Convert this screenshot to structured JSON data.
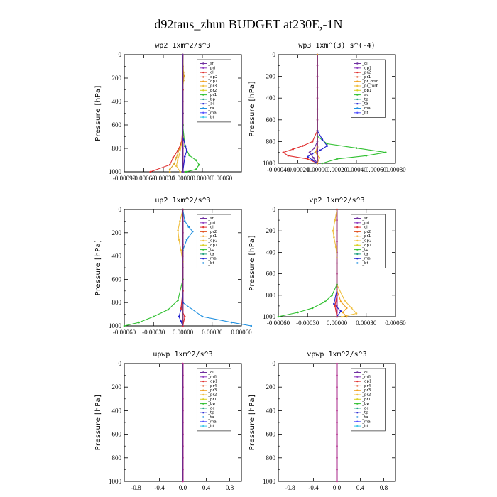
{
  "figure": {
    "title": "d92taus_zhun  BUDGET at230E,-1N"
  },
  "chart_data": [
    {
      "type": "line",
      "title": "wp2  1xm^2/s^3",
      "ylabel": "Pressure [hPa]",
      "ylim": [
        1000,
        0
      ],
      "yticks": [
        "0",
        "200",
        "400",
        "600",
        "800",
        "1000"
      ],
      "xlim": [
        -0.0009,
        0.0009
      ],
      "xticks": [
        "-0.00090",
        "-0.00060",
        "-0.00030",
        "0.00000",
        "0.00030",
        "0.00060"
      ],
      "legend": [
        "_sf",
        "_pd",
        "_cl",
        "_dp2",
        "_dp1",
        "_pr3",
        "_pr2",
        "_pr1",
        "_bp",
        "_ac",
        "_ta",
        "_ma",
        "_bt"
      ],
      "series": [
        {
          "color": "#c0268a",
          "x": [
            0,
            0,
            0,
            0,
            0,
            0,
            0,
            0,
            0,
            0,
            0
          ],
          "y": [
            0,
            100,
            200,
            300,
            400,
            500,
            600,
            700,
            800,
            900,
            1000
          ]
        },
        {
          "color": "#d8a020",
          "x": [
            0,
            1e-05,
            2e-05,
            1e-05,
            0,
            0,
            0,
            -5e-05,
            -0.0001,
            -0.00013,
            -0.0002,
            -0.0002
          ],
          "y": [
            0,
            150,
            180,
            220,
            300,
            500,
            700,
            800,
            880,
            930,
            980,
            1000
          ]
        },
        {
          "color": "#e03030",
          "x": [
            0,
            0,
            0,
            -2e-05,
            -8e-05,
            -0.00015,
            -0.0002,
            -0.0005
          ],
          "y": [
            0,
            300,
            600,
            750,
            820,
            880,
            940,
            1000
          ]
        },
        {
          "color": "#30c030",
          "x": [
            0,
            0,
            3e-05,
            0.0001,
            0.0002,
            0.00025,
            0.0002,
            5e-05
          ],
          "y": [
            0,
            600,
            780,
            860,
            900,
            940,
            980,
            1000
          ]
        },
        {
          "color": "#2020d0",
          "x": [
            0,
            0,
            4e-05,
            6e-05,
            3e-05,
            0
          ],
          "y": [
            0,
            700,
            780,
            820,
            870,
            1000
          ]
        },
        {
          "color": "#f0c040",
          "x": [
            0,
            0,
            -5e-05,
            -8e-05,
            -0.0001,
            -4e-05
          ],
          "y": [
            0,
            700,
            850,
            900,
            950,
            1000
          ]
        },
        {
          "color": "#7030a0",
          "x": [
            0,
            0,
            0
          ],
          "y": [
            0,
            500,
            1000
          ]
        }
      ]
    },
    {
      "type": "line",
      "title": "wp3  1xm^(3) s^(-4)",
      "ylabel": "Pressure [hPa]",
      "ylim": [
        1000,
        0
      ],
      "yticks": [
        "0",
        "200",
        "400",
        "600",
        "800",
        "1000"
      ],
      "xlim": [
        -0.0004,
        0.0008
      ],
      "xticks": [
        "-0.00040",
        "-0.00020",
        "0.00000",
        "0.00020",
        "0.00040",
        "0.00060",
        "0.00080"
      ],
      "legend": [
        "_cl",
        "_dp1",
        "_pr2",
        "_pr1",
        "_pr_dfsn",
        "_pr_turb",
        "_bp1",
        "_ac",
        "_tp",
        "_ta",
        "_ma",
        "_bt"
      ],
      "series": [
        {
          "color": "#c0268a",
          "x": [
            0,
            0,
            0,
            0,
            0,
            0,
            0,
            0,
            0,
            0
          ],
          "y": [
            0,
            100,
            200,
            300,
            400,
            500,
            600,
            700,
            850,
            1000
          ]
        },
        {
          "color": "#e03030",
          "x": [
            0,
            0,
            -5e-05,
            -0.00015,
            -0.00025,
            -0.00035,
            -0.0003,
            -0.0001,
            0
          ],
          "y": [
            0,
            700,
            800,
            840,
            870,
            900,
            930,
            960,
            1000
          ]
        },
        {
          "color": "#30c030",
          "x": [
            0,
            0,
            0.0001,
            0.0004,
            0.0007,
            0.0005,
            0.0002,
            5e-05
          ],
          "y": [
            0,
            750,
            820,
            860,
            900,
            930,
            960,
            1000
          ]
        },
        {
          "color": "#2020d0",
          "x": [
            0,
            0,
            5e-05,
            0.0001,
            3e-05,
            -5e-05,
            -0.0001,
            -5e-05,
            0
          ],
          "y": [
            0,
            700,
            780,
            840,
            880,
            910,
            940,
            970,
            1000
          ]
        },
        {
          "color": "#7030a0",
          "x": [
            0,
            0,
            -3e-05,
            -8e-05,
            -4e-05,
            0
          ],
          "y": [
            0,
            800,
            860,
            900,
            950,
            1000
          ]
        },
        {
          "color": "#f0a020",
          "x": [
            0,
            0,
            -2e-05,
            2e-05,
            0
          ],
          "y": [
            0,
            850,
            900,
            950,
            1000
          ]
        }
      ]
    },
    {
      "type": "line",
      "title": "up2  1xm^2/s^3",
      "ylabel": "Pressure [hPa]",
      "ylim": [
        1000,
        0
      ],
      "yticks": [
        "0",
        "200",
        "400",
        "600",
        "800",
        "1000"
      ],
      "xlim": [
        -0.0006,
        0.0006
      ],
      "xticks": [
        "-0.00060",
        "-0.00030",
        "0.00000",
        "0.00030",
        "0.00060"
      ],
      "legend": [
        "_sf",
        "_pd",
        "_cl",
        "_pr2",
        "_pr1",
        "_dp2",
        "_dp1",
        "_tp",
        "_ta",
        "_ma",
        "_bt"
      ],
      "series": [
        {
          "color": "#c0268a",
          "x": [
            0,
            0,
            0,
            0,
            0,
            0,
            0,
            0,
            0,
            0,
            0
          ],
          "y": [
            0,
            100,
            200,
            300,
            400,
            500,
            600,
            700,
            800,
            900,
            1000
          ]
        },
        {
          "color": "#f0c040",
          "x": [
            0,
            -3e-05,
            -5e-05,
            -4e-05,
            -2e-05,
            0,
            0,
            0
          ],
          "y": [
            0,
            100,
            180,
            260,
            350,
            450,
            600,
            1000
          ]
        },
        {
          "color": "#2090e0",
          "x": [
            0,
            2e-05,
            6e-05,
            0.0001,
            4e-05,
            0,
            0,
            0.0002,
            0.0005,
            0.0007
          ],
          "y": [
            0,
            100,
            150,
            190,
            260,
            350,
            800,
            920,
            970,
            1000
          ]
        },
        {
          "color": "#30c030",
          "x": [
            0,
            0,
            -5e-05,
            -0.00015,
            -0.0003,
            -0.00045,
            -0.0006
          ],
          "y": [
            0,
            600,
            780,
            860,
            920,
            970,
            1000
          ]
        },
        {
          "color": "#2020d0",
          "x": [
            0,
            0,
            -4e-05,
            -2e-05,
            0
          ],
          "y": [
            0,
            800,
            920,
            960,
            1000
          ]
        },
        {
          "color": "#e03030",
          "x": [
            0,
            0,
            -2e-05,
            2e-05,
            0
          ],
          "y": [
            0,
            700,
            850,
            920,
            1000
          ]
        }
      ]
    },
    {
      "type": "line",
      "title": "vp2  1xm^2/s^3",
      "ylabel": "Pressure [hPa]",
      "ylim": [
        1000,
        0
      ],
      "yticks": [
        "0",
        "200",
        "400",
        "600",
        "800",
        "1000"
      ],
      "xlim": [
        -0.0006,
        0.0006
      ],
      "xticks": [
        "-0.00060",
        "-0.00030",
        "0.00000",
        "0.00030",
        "0.00060"
      ],
      "legend": [
        "_sf",
        "_pd",
        "_cl",
        "_pr2",
        "_pr1",
        "_dp2",
        "_dp1",
        "_tp",
        "_ta",
        "_ma",
        "_bt"
      ],
      "series": [
        {
          "color": "#c0268a",
          "x": [
            0,
            0,
            0,
            0,
            0,
            0,
            0,
            0,
            0,
            0,
            0
          ],
          "y": [
            0,
            100,
            200,
            300,
            400,
            500,
            600,
            700,
            800,
            900,
            1000
          ]
        },
        {
          "color": "#f0c040",
          "x": [
            0,
            -2e-05,
            -4e-05,
            -3e-05,
            -1e-05,
            0,
            0,
            8e-05,
            0.00015,
            0.0002,
            5e-05
          ],
          "y": [
            0,
            100,
            200,
            260,
            350,
            450,
            700,
            850,
            920,
            970,
            1000
          ]
        },
        {
          "color": "#30c030",
          "x": [
            0,
            0,
            -5e-05,
            -0.00012,
            -0.00025,
            -0.0004,
            -0.0006
          ],
          "y": [
            0,
            700,
            800,
            860,
            920,
            960,
            1000
          ]
        },
        {
          "color": "#2020d0",
          "x": [
            0,
            0,
            -3e-05,
            4e-05,
            0
          ],
          "y": [
            0,
            750,
            880,
            950,
            1000
          ]
        },
        {
          "color": "#f0a020",
          "x": [
            0,
            0,
            4e-05,
            0.0001,
            6e-05,
            0.0001
          ],
          "y": [
            0,
            750,
            860,
            920,
            960,
            1000
          ]
        },
        {
          "color": "#e03030",
          "x": [
            0,
            0,
            -2e-05,
            0
          ],
          "y": [
            0,
            800,
            900,
            1000
          ]
        }
      ]
    },
    {
      "type": "line",
      "title": "upwp  1xm^2/s^3",
      "ylabel": "Pressure [hPa]",
      "ylim": [
        1000,
        0
      ],
      "yticks": [
        "0",
        "200",
        "400",
        "600",
        "800",
        "1000"
      ],
      "xlim": [
        -1.0,
        1.0
      ],
      "xticks": [
        "-0.8",
        "-0.4",
        "0.0",
        "0.4",
        "0.8"
      ],
      "legend": [
        "_cl",
        "_mfl",
        "_dp1",
        "_pr4",
        "_pr3",
        "_pr2",
        "_pr1",
        "_bp",
        "_ac",
        "_tp",
        "_ta",
        "_ma",
        "_bt"
      ],
      "series": [
        {
          "color": "#c0268a",
          "x": [
            0,
            0,
            0,
            0,
            0,
            0,
            0,
            0,
            0,
            0,
            0
          ],
          "y": [
            0,
            100,
            200,
            300,
            400,
            500,
            600,
            700,
            800,
            900,
            1000
          ]
        }
      ]
    },
    {
      "type": "line",
      "title": "vpwp  1xm^2/s^3",
      "ylabel": "Pressure [hPa]",
      "ylim": [
        1000,
        0
      ],
      "yticks": [
        "0",
        "200",
        "400",
        "600",
        "800",
        "1000"
      ],
      "xlim": [
        -1.0,
        1.0
      ],
      "xticks": [
        "-0.8",
        "-0.4",
        "0.0",
        "0.4",
        "0.8"
      ],
      "legend": [
        "_cl",
        "_mfl",
        "_dp1",
        "_pr4",
        "_pr3",
        "_pr2",
        "_pr1",
        "_bp",
        "_ac",
        "_tp",
        "_ta",
        "_ma",
        "_bt"
      ],
      "series": [
        {
          "color": "#c0268a",
          "x": [
            0,
            0,
            0,
            0,
            0,
            0,
            0,
            0,
            0,
            0,
            0
          ],
          "y": [
            0,
            100,
            200,
            300,
            400,
            500,
            600,
            700,
            800,
            900,
            1000
          ]
        }
      ]
    }
  ],
  "legend_colors": [
    "#7030a0",
    "#9040c0",
    "#e03030",
    "#e05020",
    "#f0a020",
    "#f0c040",
    "#d8d020",
    "#30c030",
    "#20a080",
    "#2020d0",
    "#2090e0",
    "#5050ff",
    "#40c8e8",
    "#30d0f0"
  ]
}
